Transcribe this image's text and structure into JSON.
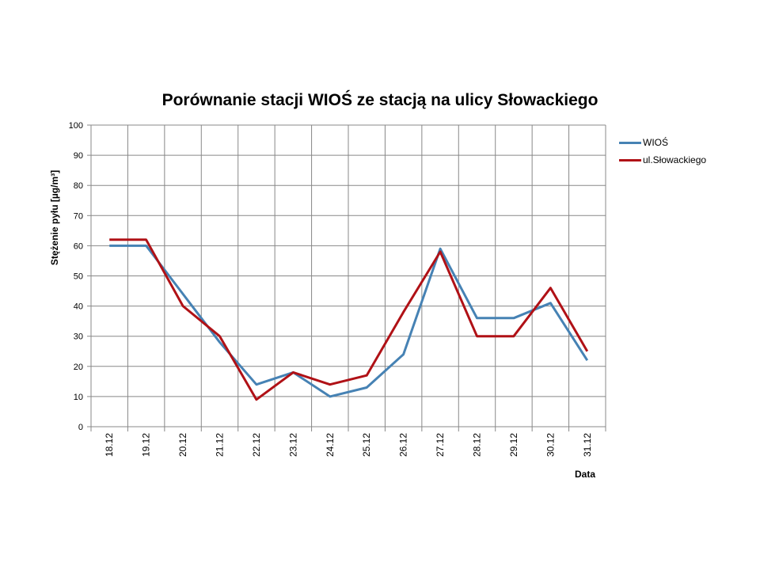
{
  "chart_data": {
    "type": "line",
    "title": "Porównanie stacji WIOŚ ze stacją na ulicy Słowackiego",
    "xlabel": "Data",
    "ylabel": "Stężenie pyłu [µg/m³]",
    "ylim": [
      0,
      100
    ],
    "yticks": [
      0,
      10,
      20,
      30,
      40,
      50,
      60,
      70,
      80,
      90,
      100
    ],
    "categories": [
      "18.12",
      "19.12",
      "20.12",
      "21.12",
      "22.12",
      "23.12",
      "24.12",
      "25.12",
      "26.12",
      "27.12",
      "28.12",
      "29.12",
      "30.12",
      "31.12"
    ],
    "grid": true,
    "legend": "right",
    "series": [
      {
        "name": "WIOŚ",
        "color": "#4682b4",
        "values": [
          60,
          60,
          44,
          28,
          14,
          18,
          10,
          13,
          24,
          59,
          36,
          36,
          41,
          22
        ]
      },
      {
        "name": "ul.Słowackiego",
        "color": "#b01116",
        "values": [
          62,
          62,
          40,
          30,
          9,
          18,
          14,
          17,
          38,
          58,
          30,
          30,
          46,
          25
        ]
      }
    ]
  }
}
